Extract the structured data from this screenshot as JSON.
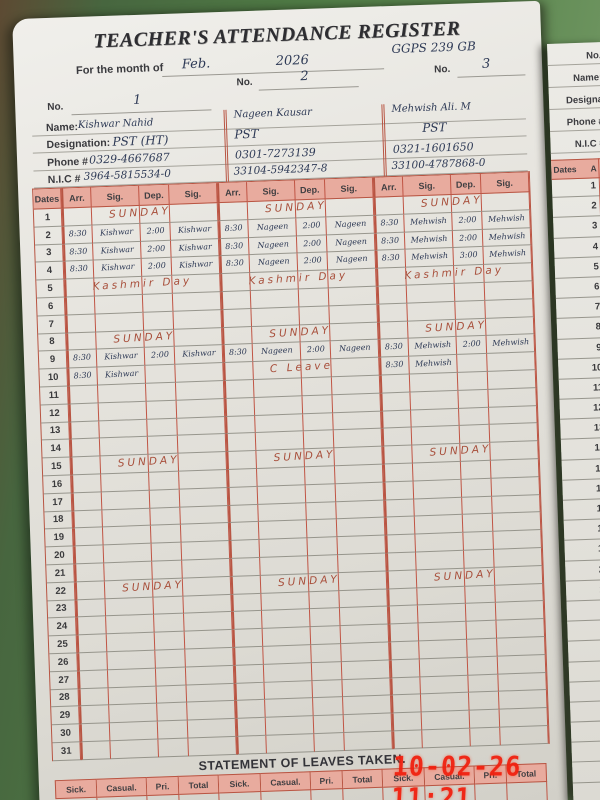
{
  "photo": {
    "timestamp": "10-02-26 11:21"
  },
  "register": {
    "title": "TEACHER'S ATTENDANCE REGISTER",
    "month_label": "For the month of",
    "month_value": "Feb.",
    "year_value": "2026",
    "school_value": "GGPS 239 GB",
    "no_label": "No.",
    "teacher_numbers": [
      "1",
      "2",
      "3"
    ],
    "info_labels": {
      "name": "Name:",
      "designation": "Designation:",
      "phone": "Phone #",
      "nic": "N.I.C #"
    },
    "teachers": [
      {
        "no": "1",
        "name": "Kishwar Nahid",
        "designation": "PST (HT)",
        "phone": "0329-4667687",
        "nic": "3964-5815534-0"
      },
      {
        "no": "2",
        "name": "Nageen Kausar",
        "designation": "PST",
        "phone": "0301-7273139",
        "nic": "33104-5942347-8"
      },
      {
        "no": "3",
        "name": "Mehwish Ali. M",
        "designation": "PST",
        "phone": "0321-1601650",
        "nic": "33100-4787868-0"
      }
    ],
    "table": {
      "date_header": "Dates",
      "column_headers": [
        "Arr.",
        "Sig.",
        "Dep.",
        "Sig."
      ],
      "rows": [
        {
          "date": "1",
          "t": [
            {
              "note": "SUNDAY",
              "ink": "red"
            },
            {
              "note": "SUNDAY",
              "ink": "red"
            },
            {
              "note": "SUNDAY",
              "ink": "red"
            }
          ]
        },
        {
          "date": "2",
          "t": [
            {
              "times": [
                "8:30",
                "Kishwar",
                "2:00",
                "Kishwar"
              ]
            },
            {
              "times": [
                "8:30",
                "Nageen",
                "2:00",
                "Nageen"
              ]
            },
            {
              "times": [
                "8:30",
                "Mehwish",
                "2:00",
                "Mehwish"
              ]
            }
          ]
        },
        {
          "date": "3",
          "t": [
            {
              "times": [
                "8:30",
                "Kishwar",
                "2:00",
                "Kishwar"
              ]
            },
            {
              "times": [
                "8:30",
                "Nageen",
                "2:00",
                "Nageen"
              ]
            },
            {
              "times": [
                "8:30",
                "Mehwish",
                "2:00",
                "Mehwish"
              ]
            }
          ]
        },
        {
          "date": "4",
          "t": [
            {
              "times": [
                "8:30",
                "Kishwar",
                "2:00",
                "Kishwar"
              ]
            },
            {
              "times": [
                "8:30",
                "Nageen",
                "2:00",
                "Nageen"
              ]
            },
            {
              "times": [
                "8:30",
                "Mehwish",
                "3:00",
                "Mehwish"
              ]
            }
          ]
        },
        {
          "date": "5",
          "t": [
            {
              "note": "Kashmir Day",
              "ink": "red"
            },
            {
              "note": "Kashmir Day",
              "ink": "red"
            },
            {
              "note": "Kashmir Day",
              "ink": "red"
            }
          ]
        },
        {
          "date": "6",
          "t": [
            null,
            null,
            null
          ]
        },
        {
          "date": "7",
          "t": [
            null,
            null,
            null
          ]
        },
        {
          "date": "8",
          "t": [
            {
              "note": "SUNDAY",
              "ink": "red"
            },
            {
              "note": "SUNDAY",
              "ink": "red"
            },
            {
              "note": "SUNDAY",
              "ink": "red"
            }
          ]
        },
        {
          "date": "9",
          "t": [
            {
              "times": [
                "8:30",
                "Kishwar",
                "2:00",
                "Kishwar"
              ]
            },
            {
              "times": [
                "8:30",
                "Nageen",
                "2:00",
                "Nageen"
              ]
            },
            {
              "times": [
                "8:30",
                "Mehwish",
                "2:00",
                "Mehwish"
              ]
            }
          ]
        },
        {
          "date": "10",
          "t": [
            {
              "times": [
                "8:30",
                "Kishwar",
                "",
                ""
              ]
            },
            {
              "note": "C Leave",
              "ink": "red"
            },
            {
              "times": [
                "8:30",
                "Mehwish",
                "",
                ""
              ]
            }
          ]
        },
        {
          "date": "11",
          "t": [
            null,
            null,
            null
          ]
        },
        {
          "date": "12",
          "t": [
            null,
            null,
            null
          ]
        },
        {
          "date": "13",
          "t": [
            null,
            null,
            null
          ]
        },
        {
          "date": "14",
          "t": [
            null,
            null,
            null
          ]
        },
        {
          "date": "15",
          "t": [
            {
              "note": "SUNDAY",
              "ink": "red"
            },
            {
              "note": "SUNDAY",
              "ink": "red"
            },
            {
              "note": "SUNDAY",
              "ink": "red"
            }
          ]
        },
        {
          "date": "16",
          "t": [
            null,
            null,
            null
          ]
        },
        {
          "date": "17",
          "t": [
            null,
            null,
            null
          ]
        },
        {
          "date": "18",
          "t": [
            null,
            null,
            null
          ]
        },
        {
          "date": "19",
          "t": [
            null,
            null,
            null
          ]
        },
        {
          "date": "20",
          "t": [
            null,
            null,
            null
          ]
        },
        {
          "date": "21",
          "t": [
            null,
            null,
            null
          ]
        },
        {
          "date": "22",
          "t": [
            {
              "note": "SUNDAY",
              "ink": "red"
            },
            {
              "note": "SUNDAY",
              "ink": "red"
            },
            {
              "note": "SUNDAY",
              "ink": "red"
            }
          ]
        },
        {
          "date": "23",
          "t": [
            null,
            null,
            null
          ]
        },
        {
          "date": "24",
          "t": [
            null,
            null,
            null
          ]
        },
        {
          "date": "25",
          "t": [
            null,
            null,
            null
          ]
        },
        {
          "date": "26",
          "t": [
            null,
            null,
            null
          ]
        },
        {
          "date": "27",
          "t": [
            null,
            null,
            null
          ]
        },
        {
          "date": "28",
          "t": [
            null,
            null,
            null
          ]
        },
        {
          "date": "29",
          "t": [
            null,
            null,
            null
          ]
        },
        {
          "date": "30",
          "t": [
            null,
            null,
            null
          ]
        },
        {
          "date": "31",
          "t": [
            null,
            null,
            null
          ]
        }
      ]
    },
    "leaves": {
      "title": "STATEMENT OF LEAVES TAKEN.",
      "headers": [
        "Sick.",
        "Casual.",
        "Pri.",
        "Total"
      ]
    }
  },
  "adjacent_page": {
    "labels": [
      "No.",
      "Name:",
      "Designa",
      "Phone #",
      "N.I.C #"
    ],
    "dates_label": "Dates",
    "arr_label": "A"
  },
  "colors": {
    "header_pink": "#e8ab9e",
    "grid_red": "#c05545",
    "ink_blue": "#2e3a56",
    "ink_red": "#a84f3b",
    "timestamp_red": "#f1200f"
  }
}
